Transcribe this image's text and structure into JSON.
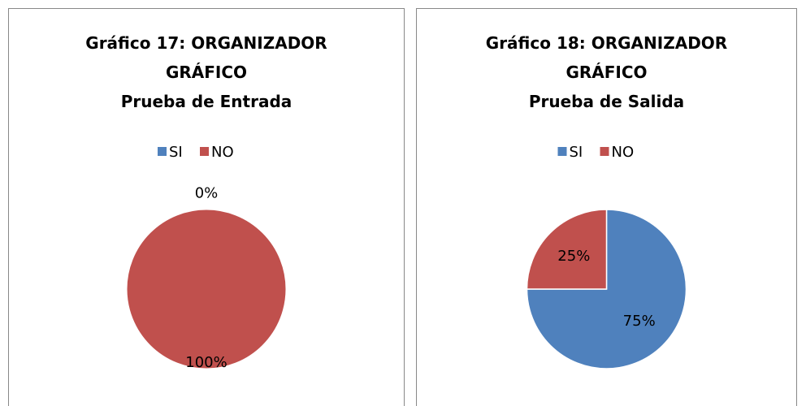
{
  "chart_data": [
    {
      "type": "pie",
      "title": "Gráfico 17: ORGANIZADOR GRÁFICO",
      "subtitle": "Prueba de Entrada",
      "categories": [
        "SI",
        "NO"
      ],
      "values": [
        0,
        100
      ],
      "value_labels": [
        "0%",
        "100%"
      ],
      "colors": [
        "#4f81bd",
        "#c0504d"
      ],
      "legend": "top"
    },
    {
      "type": "pie",
      "title": "Gráfico 18: ORGANIZADOR GRÁFICO",
      "subtitle": "Prueba de Salida",
      "categories": [
        "SI",
        "NO"
      ],
      "values": [
        75,
        25
      ],
      "value_labels": [
        "75%",
        "25%"
      ],
      "colors": [
        "#4f81bd",
        "#c0504d"
      ],
      "legend": "top"
    }
  ]
}
